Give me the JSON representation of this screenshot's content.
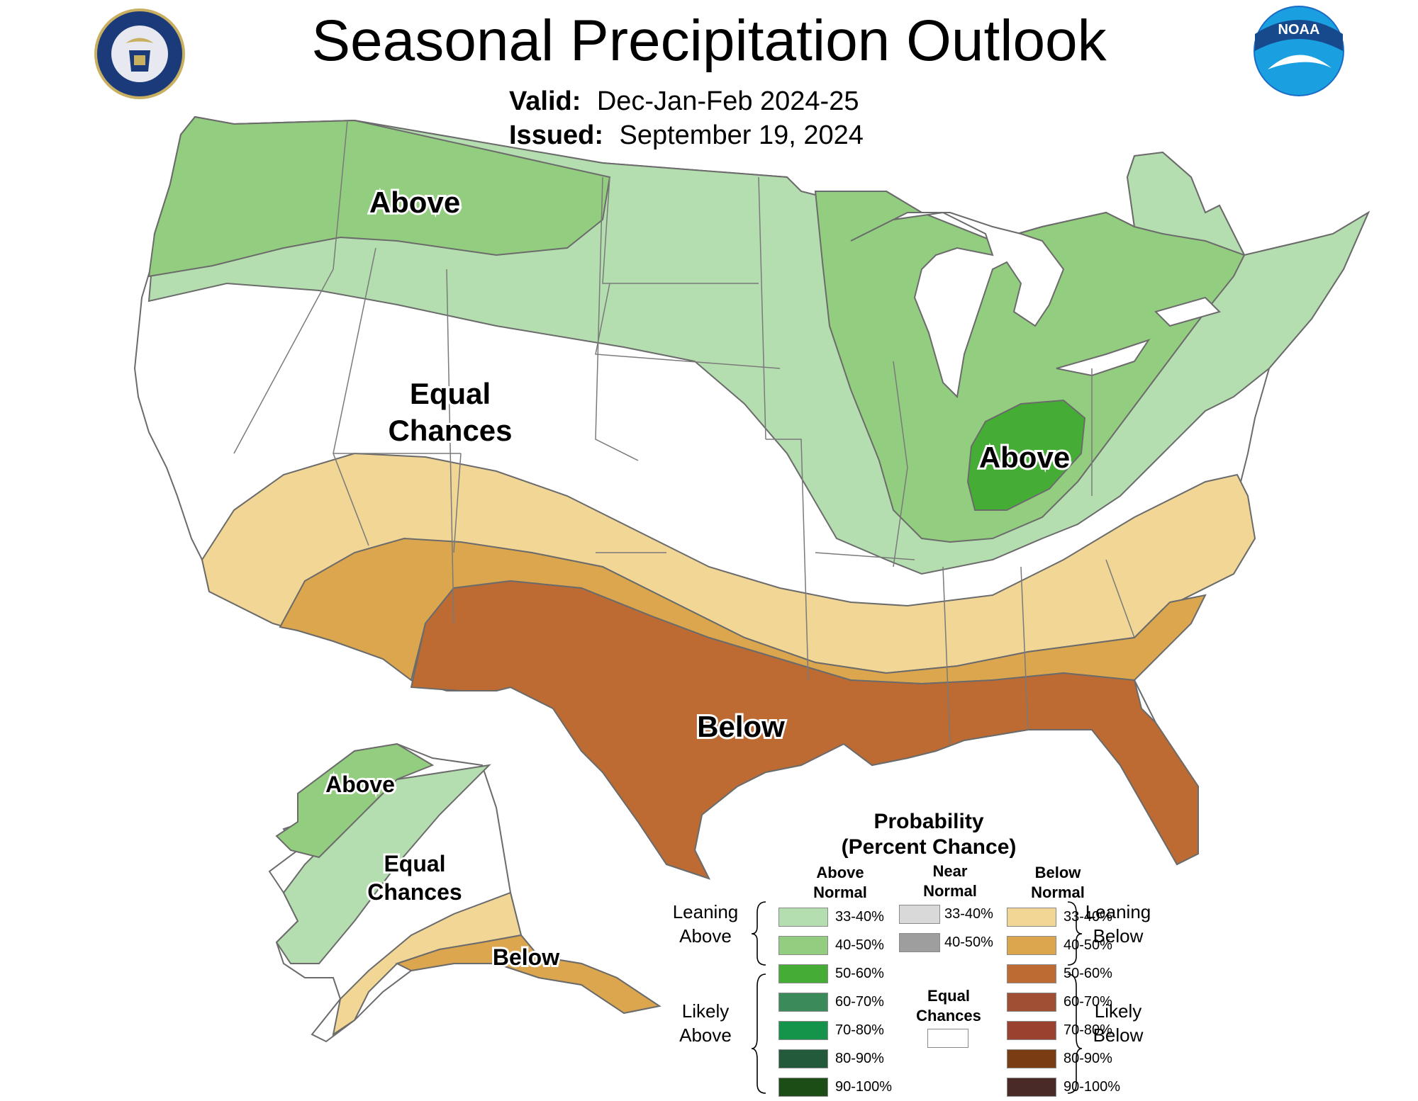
{
  "header": {
    "title": "Seasonal Precipitation Outlook",
    "valid_label": "Valid:",
    "valid_value": "Dec-Jan-Feb 2024-25",
    "issued_label": "Issued:",
    "issued_value": "September 19, 2024"
  },
  "logos": {
    "left": "doc-seal-icon",
    "right": "noaa-logo-icon",
    "noaa_text": "NOAA"
  },
  "map_labels": {
    "conus_above_north": "Above",
    "conus_equal_line1": "Equal",
    "conus_equal_line2": "Chances",
    "conus_above_ohio": "Above",
    "conus_below": "Below",
    "alaska_above": "Above",
    "alaska_equal_line1": "Equal",
    "alaska_equal_line2": "Chances",
    "alaska_below": "Below"
  },
  "colors": {
    "above_33_40": "#b5deb0",
    "above_40_50": "#93cd7f",
    "above_50_60": "#45ad35",
    "above_60_70": "#3a8a5a",
    "above_70_80": "#14934a",
    "above_80_90": "#235a3b",
    "above_90_100": "#1d4d16",
    "near_33_40": "#d9d9d9",
    "near_40_50": "#9e9e9e",
    "below_33_40": "#f1d696",
    "below_40_50": "#dba64d",
    "below_50_60": "#bd6b32",
    "below_60_70": "#a04f35",
    "below_70_80": "#9b4130",
    "below_80_90": "#7a3c12",
    "below_90_100": "#4a2a26",
    "equal": "#ffffff",
    "border": "#6b6b6b",
    "state_line": "#7a7a7a"
  },
  "legend": {
    "title_line1": "Probability",
    "title_line2": "(Percent Chance)",
    "above_head_1": "Above",
    "above_head_2": "Normal",
    "near_head_1": "Near",
    "near_head_2": "Normal",
    "below_head_1": "Below",
    "below_head_2": "Normal",
    "leaning_above_1": "Leaning",
    "leaning_above_2": "Above",
    "likely_above_1": "Likely",
    "likely_above_2": "Above",
    "leaning_below_1": "Leaning",
    "leaning_below_2": "Below",
    "likely_below_1": "Likely",
    "likely_below_2": "Below",
    "equal_1": "Equal",
    "equal_2": "Chances",
    "above_rows": [
      "33-40%",
      "40-50%",
      "50-60%",
      "60-70%",
      "70-80%",
      "80-90%",
      "90-100%"
    ],
    "near_rows": [
      "33-40%",
      "40-50%"
    ],
    "below_rows": [
      "33-40%",
      "40-50%",
      "50-60%",
      "60-70%",
      "70-80%",
      "80-90%",
      "90-100%"
    ]
  }
}
